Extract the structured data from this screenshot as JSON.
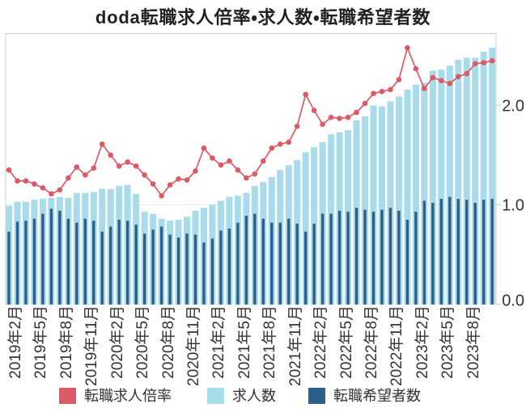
{
  "chart_data": {
    "type": "bar",
    "subtype": "grouped-overlay-bars-with-line",
    "title": "doda転職求人倍率・求人数・転職希望者数",
    "categories": [
      "2019年1月",
      "2019年2月",
      "2019年3月",
      "2019年4月",
      "2019年5月",
      "2019年6月",
      "2019年7月",
      "2019年8月",
      "2019年9月",
      "2019年10月",
      "2019年11月",
      "2019年12月",
      "2020年1月",
      "2020年2月",
      "2020年3月",
      "2020年4月",
      "2020年5月",
      "2020年6月",
      "2020年7月",
      "2020年8月",
      "2020年9月",
      "2020年10月",
      "2020年11月",
      "2020年12月",
      "2021年1月",
      "2021年2月",
      "2021年3月",
      "2021年4月",
      "2021年5月",
      "2021年6月",
      "2021年7月",
      "2021年8月",
      "2021年9月",
      "2021年10月",
      "2021年11月",
      "2021年12月",
      "2022年1月",
      "2022年2月",
      "2022年3月",
      "2022年4月",
      "2022年5月",
      "2022年6月",
      "2022年7月",
      "2022年8月",
      "2022年9月",
      "2022年10月",
      "2022年11月",
      "2022年12月",
      "2023年1月",
      "2023年2月",
      "2023年3月",
      "2023年4月",
      "2023年5月",
      "2023年6月",
      "2023年7月",
      "2023年8月",
      "2023年9月",
      "2023年10月"
    ],
    "x_tick_labels": [
      "2019年2月",
      "2019年5月",
      "2019年8月",
      "2019年11月",
      "2020年2月",
      "2020年5月",
      "2020年8月",
      "2020年11月",
      "2021年2月",
      "2021年5月",
      "2021年8月",
      "2021年11月",
      "2022年2月",
      "2022年5月",
      "2022年8月",
      "2022年11月",
      "2023年2月",
      "2023年5月",
      "2023年8月"
    ],
    "x_tick_every": 3,
    "x_tick_start_index": 1,
    "series": [
      {
        "name": "転職求人倍率",
        "type": "line",
        "color": "#dc5a66",
        "values": [
          1.35,
          1.24,
          1.24,
          1.21,
          1.17,
          1.11,
          1.15,
          1.27,
          1.38,
          1.3,
          1.37,
          1.61,
          1.5,
          1.39,
          1.43,
          1.39,
          1.3,
          1.21,
          1.09,
          1.2,
          1.26,
          1.25,
          1.34,
          1.57,
          1.47,
          1.4,
          1.44,
          1.35,
          1.27,
          1.31,
          1.44,
          1.57,
          1.61,
          1.63,
          1.79,
          2.11,
          1.95,
          1.81,
          1.88,
          1.87,
          1.88,
          1.93,
          2.02,
          2.12,
          2.14,
          2.16,
          2.26,
          2.58,
          2.37,
          2.17,
          2.28,
          2.25,
          2.22,
          2.29,
          2.32,
          2.42,
          2.43,
          2.45
        ]
      },
      {
        "name": "求人数",
        "type": "bar",
        "color": "#a9dcea",
        "values": [
          0.99,
          1.03,
          1.03,
          1.05,
          1.06,
          1.07,
          1.08,
          1.07,
          1.12,
          1.12,
          1.13,
          1.16,
          1.16,
          1.19,
          1.2,
          1.11,
          0.93,
          0.91,
          0.86,
          0.84,
          0.85,
          0.88,
          0.94,
          0.97,
          1.0,
          1.04,
          1.08,
          1.09,
          1.12,
          1.19,
          1.23,
          1.28,
          1.35,
          1.4,
          1.45,
          1.53,
          1.58,
          1.63,
          1.71,
          1.73,
          1.75,
          1.85,
          1.89,
          2.0,
          1.99,
          2.04,
          2.09,
          2.16,
          2.21,
          2.23,
          2.35,
          2.36,
          2.4,
          2.46,
          2.48,
          2.48,
          2.54,
          2.58
        ]
      },
      {
        "name": "転職希望者数",
        "type": "bar",
        "color": "#2d5f8b",
        "values": [
          0.73,
          0.83,
          0.84,
          0.86,
          0.91,
          0.96,
          0.94,
          0.86,
          0.82,
          0.86,
          0.84,
          0.73,
          0.78,
          0.85,
          0.84,
          0.8,
          0.71,
          0.75,
          0.78,
          0.7,
          0.67,
          0.71,
          0.7,
          0.62,
          0.66,
          0.74,
          0.76,
          0.82,
          0.89,
          0.91,
          0.86,
          0.82,
          0.82,
          0.86,
          0.81,
          0.73,
          0.81,
          0.91,
          0.91,
          0.94,
          0.93,
          0.97,
          0.95,
          0.93,
          0.95,
          0.97,
          0.94,
          0.85,
          0.93,
          1.04,
          1.02,
          1.06,
          1.08,
          1.06,
          1.05,
          1.02,
          1.05,
          1.06
        ]
      }
    ],
    "y_axis": {
      "side": "right",
      "ticks": [
        0.0,
        1.0,
        2.0
      ],
      "tick_labels": [
        "0.0",
        "1.0",
        "2.0"
      ],
      "ylim": [
        0,
        2.73
      ],
      "grid": true,
      "grid_color": "#e9e9e9"
    },
    "legend_position": "bottom",
    "plot_border_color": "#cfcfcf",
    "background_color": "#ffffff",
    "text_color": "#333333"
  },
  "legend": {
    "items": [
      {
        "label": "転職求人倍率",
        "color": "#dc5a66"
      },
      {
        "label": "求人数",
        "color": "#a9dcea"
      },
      {
        "label": "転職希望者数",
        "color": "#2d5f8b"
      }
    ]
  }
}
